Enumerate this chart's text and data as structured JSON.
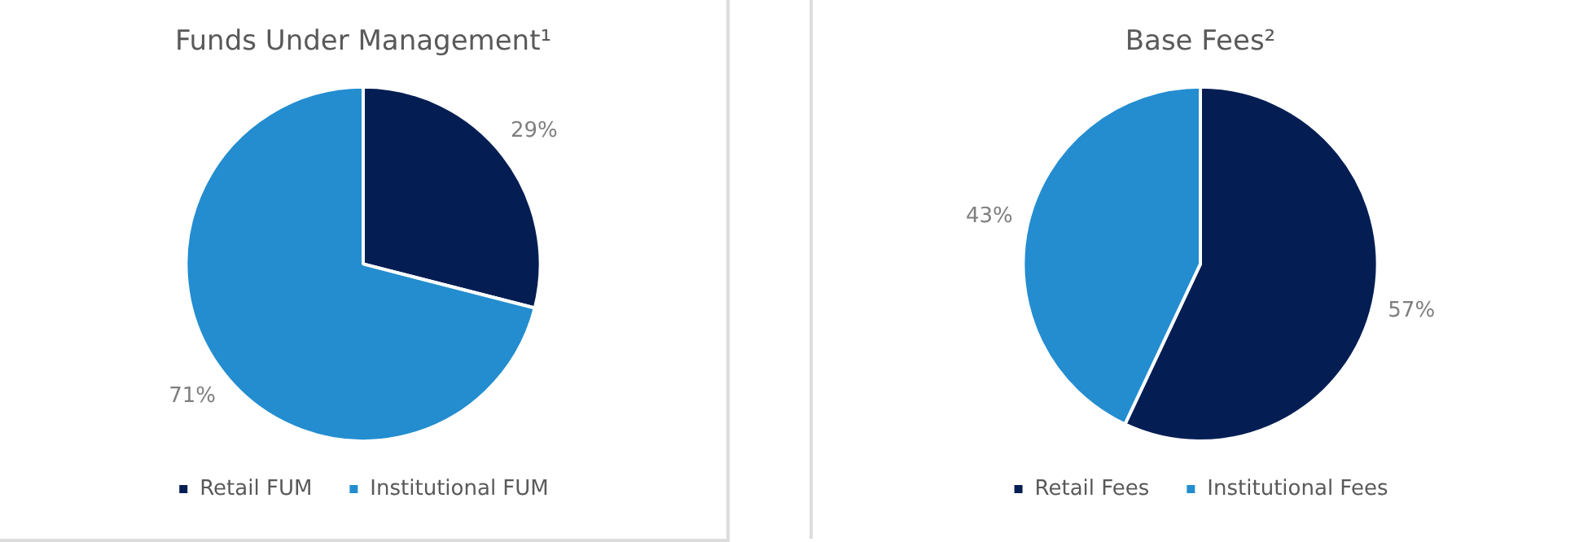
{
  "chart_data": [
    {
      "type": "pie",
      "title": "Funds Under Management¹",
      "categories": [
        "Retail FUM",
        "Institutional FUM"
      ],
      "values": [
        29,
        71
      ],
      "colors": [
        "#041e54",
        "#238dd0"
      ],
      "value_labels": [
        "29%",
        "71%"
      ],
      "legend": "bottom"
    },
    {
      "type": "pie",
      "title": "Base Fees²",
      "categories": [
        "Retail Fees",
        "Institutional Fees"
      ],
      "values": [
        57,
        43
      ],
      "colors": [
        "#041e54",
        "#238dd0"
      ],
      "value_labels": [
        "57%",
        "43%"
      ],
      "legend": "bottom"
    }
  ]
}
